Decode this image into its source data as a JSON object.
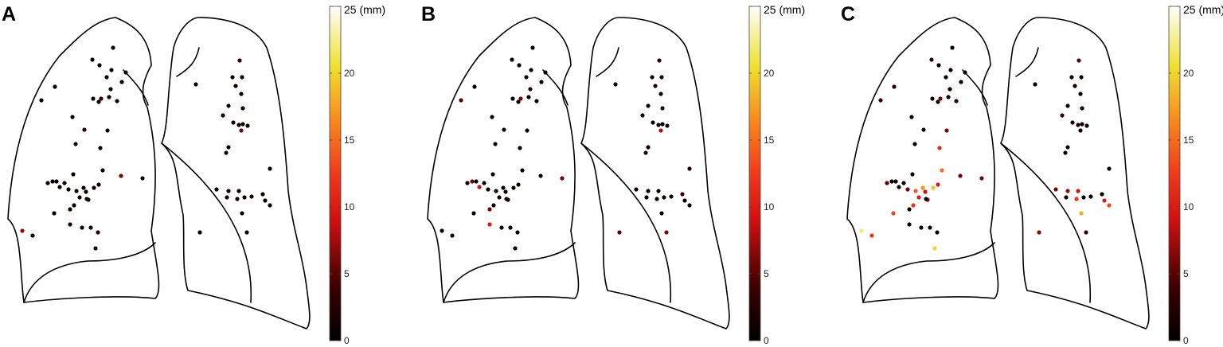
{
  "chart_data": [
    {
      "type": "scatter",
      "panel_label": "A",
      "colorbar": {
        "min": 0,
        "max": 25,
        "ticks": [
          0,
          5,
          10,
          15,
          20,
          25
        ],
        "top_tick_label": "25 (mm)",
        "colormap": "hot"
      },
      "right_lung": [
        {
          "x": 142,
          "y": 60,
          "v": 1
        },
        {
          "x": 116,
          "y": 75,
          "v": 1
        },
        {
          "x": 125,
          "y": 82,
          "v": 1
        },
        {
          "x": 158,
          "y": 91,
          "v": 1
        },
        {
          "x": 140,
          "y": 88,
          "v": 1
        },
        {
          "x": 134,
          "y": 97,
          "v": 1
        },
        {
          "x": 153,
          "y": 103,
          "v": 1
        },
        {
          "x": 139,
          "y": 112,
          "v": 1
        },
        {
          "x": 69,
          "y": 109,
          "v": 1
        },
        {
          "x": 52,
          "y": 126,
          "v": 1
        },
        {
          "x": 117,
          "y": 124,
          "v": 1
        },
        {
          "x": 127,
          "y": 124,
          "v": 4
        },
        {
          "x": 124,
          "y": 128,
          "v": 1
        },
        {
          "x": 137,
          "y": 122,
          "v": 1
        },
        {
          "x": 147,
          "y": 127,
          "v": 1
        },
        {
          "x": 91,
          "y": 147,
          "v": 1
        },
        {
          "x": 106,
          "y": 163,
          "v": 3
        },
        {
          "x": 135,
          "y": 164,
          "v": 1
        },
        {
          "x": 95,
          "y": 181,
          "v": 1
        },
        {
          "x": 126,
          "y": 186,
          "v": 1
        },
        {
          "x": 129,
          "y": 214,
          "v": 1
        },
        {
          "x": 152,
          "y": 221,
          "v": 6
        },
        {
          "x": 179,
          "y": 224,
          "v": 1
        },
        {
          "x": 92,
          "y": 219,
          "v": 1
        },
        {
          "x": 60,
          "y": 230,
          "v": 1
        },
        {
          "x": 66,
          "y": 228,
          "v": 1
        },
        {
          "x": 71,
          "y": 228,
          "v": 1
        },
        {
          "x": 75,
          "y": 235,
          "v": 1
        },
        {
          "x": 81,
          "y": 230,
          "v": 1
        },
        {
          "x": 86,
          "y": 238,
          "v": 1
        },
        {
          "x": 96,
          "y": 240,
          "v": 1
        },
        {
          "x": 105,
          "y": 236,
          "v": 1
        },
        {
          "x": 108,
          "y": 241,
          "v": 1
        },
        {
          "x": 118,
          "y": 236,
          "v": 1
        },
        {
          "x": 124,
          "y": 232,
          "v": 1
        },
        {
          "x": 100,
          "y": 248,
          "v": 1
        },
        {
          "x": 111,
          "y": 251,
          "v": 3
        },
        {
          "x": 109,
          "y": 250,
          "v": 1
        },
        {
          "x": 93,
          "y": 258,
          "v": 1
        },
        {
          "x": 88,
          "y": 263,
          "v": 1
        },
        {
          "x": 68,
          "y": 268,
          "v": 1
        },
        {
          "x": 88,
          "y": 282,
          "v": 1
        },
        {
          "x": 114,
          "y": 286,
          "v": 1
        },
        {
          "x": 123,
          "y": 292,
          "v": 3
        },
        {
          "x": 103,
          "y": 286,
          "v": 1
        },
        {
          "x": 28,
          "y": 290,
          "v": 7
        },
        {
          "x": 41,
          "y": 296,
          "v": 1
        },
        {
          "x": 120,
          "y": 312,
          "v": 1
        }
      ],
      "left_lung": [
        {
          "x": 301,
          "y": 76,
          "v": 4
        },
        {
          "x": 246,
          "y": 106,
          "v": 1
        },
        {
          "x": 292,
          "y": 97,
          "v": 1
        },
        {
          "x": 304,
          "y": 97,
          "v": 1
        },
        {
          "x": 296,
          "y": 108,
          "v": 1
        },
        {
          "x": 303,
          "y": 118,
          "v": 1
        },
        {
          "x": 287,
          "y": 133,
          "v": 1
        },
        {
          "x": 305,
          "y": 136,
          "v": 1
        },
        {
          "x": 280,
          "y": 145,
          "v": 1
        },
        {
          "x": 293,
          "y": 154,
          "v": 1
        },
        {
          "x": 300,
          "y": 157,
          "v": 1
        },
        {
          "x": 305,
          "y": 156,
          "v": 1
        },
        {
          "x": 311,
          "y": 158,
          "v": 1
        },
        {
          "x": 303,
          "y": 164,
          "v": 6
        },
        {
          "x": 287,
          "y": 185,
          "v": 1
        },
        {
          "x": 284,
          "y": 192,
          "v": 1
        },
        {
          "x": 339,
          "y": 212,
          "v": 1
        },
        {
          "x": 272,
          "y": 238,
          "v": 1
        },
        {
          "x": 287,
          "y": 240,
          "v": 1
        },
        {
          "x": 300,
          "y": 240,
          "v": 1
        },
        {
          "x": 285,
          "y": 248,
          "v": 1
        },
        {
          "x": 298,
          "y": 250,
          "v": 1
        },
        {
          "x": 307,
          "y": 248,
          "v": 1
        },
        {
          "x": 316,
          "y": 247,
          "v": 1
        },
        {
          "x": 330,
          "y": 244,
          "v": 1
        },
        {
          "x": 333,
          "y": 252,
          "v": 1
        },
        {
          "x": 339,
          "y": 258,
          "v": 1
        },
        {
          "x": 304,
          "y": 268,
          "v": 1
        },
        {
          "x": 251,
          "y": 292,
          "v": 1
        },
        {
          "x": 310,
          "y": 292,
          "v": 1
        }
      ]
    },
    {
      "type": "scatter",
      "panel_label": "B",
      "colorbar": {
        "min": 0,
        "max": 25,
        "ticks": [
          0,
          5,
          10,
          15,
          20,
          25
        ],
        "top_tick_label": "25 (mm)",
        "colormap": "hot"
      },
      "right_lung": [
        {
          "x": 142,
          "y": 60,
          "v": 1
        },
        {
          "x": 116,
          "y": 75,
          "v": 1
        },
        {
          "x": 125,
          "y": 82,
          "v": 1
        },
        {
          "x": 158,
          "y": 91,
          "v": 1
        },
        {
          "x": 140,
          "y": 88,
          "v": 1
        },
        {
          "x": 134,
          "y": 97,
          "v": 1
        },
        {
          "x": 153,
          "y": 103,
          "v": 1
        },
        {
          "x": 139,
          "y": 112,
          "v": 3
        },
        {
          "x": 69,
          "y": 109,
          "v": 1
        },
        {
          "x": 52,
          "y": 126,
          "v": 5
        },
        {
          "x": 117,
          "y": 124,
          "v": 1
        },
        {
          "x": 127,
          "y": 124,
          "v": 6
        },
        {
          "x": 124,
          "y": 128,
          "v": 1
        },
        {
          "x": 137,
          "y": 122,
          "v": 1
        },
        {
          "x": 147,
          "y": 127,
          "v": 1
        },
        {
          "x": 91,
          "y": 147,
          "v": 1
        },
        {
          "x": 106,
          "y": 163,
          "v": 1
        },
        {
          "x": 135,
          "y": 164,
          "v": 3
        },
        {
          "x": 95,
          "y": 181,
          "v": 1
        },
        {
          "x": 126,
          "y": 186,
          "v": 2
        },
        {
          "x": 129,
          "y": 214,
          "v": 1
        },
        {
          "x": 152,
          "y": 221,
          "v": 1
        },
        {
          "x": 179,
          "y": 224,
          "v": 6
        },
        {
          "x": 92,
          "y": 219,
          "v": 1
        },
        {
          "x": 60,
          "y": 230,
          "v": 1
        },
        {
          "x": 66,
          "y": 228,
          "v": 6
        },
        {
          "x": 71,
          "y": 228,
          "v": 1
        },
        {
          "x": 75,
          "y": 235,
          "v": 9
        },
        {
          "x": 81,
          "y": 230,
          "v": 1
        },
        {
          "x": 86,
          "y": 238,
          "v": 1
        },
        {
          "x": 96,
          "y": 240,
          "v": 1
        },
        {
          "x": 105,
          "y": 236,
          "v": 1
        },
        {
          "x": 108,
          "y": 241,
          "v": 1
        },
        {
          "x": 118,
          "y": 236,
          "v": 1
        },
        {
          "x": 124,
          "y": 232,
          "v": 1
        },
        {
          "x": 100,
          "y": 248,
          "v": 1
        },
        {
          "x": 111,
          "y": 251,
          "v": 1
        },
        {
          "x": 109,
          "y": 250,
          "v": 1
        },
        {
          "x": 93,
          "y": 258,
          "v": 1
        },
        {
          "x": 88,
          "y": 263,
          "v": 6
        },
        {
          "x": 68,
          "y": 268,
          "v": 1
        },
        {
          "x": 88,
          "y": 282,
          "v": 10
        },
        {
          "x": 114,
          "y": 286,
          "v": 1
        },
        {
          "x": 123,
          "y": 292,
          "v": 1
        },
        {
          "x": 103,
          "y": 286,
          "v": 1
        },
        {
          "x": 28,
          "y": 290,
          "v": 1
        },
        {
          "x": 41,
          "y": 296,
          "v": 1
        },
        {
          "x": 120,
          "y": 312,
          "v": 1
        }
      ],
      "left_lung": [
        {
          "x": 301,
          "y": 76,
          "v": 4
        },
        {
          "x": 246,
          "y": 106,
          "v": 1
        },
        {
          "x": 292,
          "y": 97,
          "v": 1
        },
        {
          "x": 304,
          "y": 97,
          "v": 1
        },
        {
          "x": 296,
          "y": 108,
          "v": 1
        },
        {
          "x": 303,
          "y": 118,
          "v": 1
        },
        {
          "x": 287,
          "y": 133,
          "v": 1
        },
        {
          "x": 305,
          "y": 136,
          "v": 1
        },
        {
          "x": 280,
          "y": 145,
          "v": 1
        },
        {
          "x": 293,
          "y": 154,
          "v": 1
        },
        {
          "x": 300,
          "y": 157,
          "v": 1
        },
        {
          "x": 305,
          "y": 156,
          "v": 1
        },
        {
          "x": 311,
          "y": 158,
          "v": 1
        },
        {
          "x": 303,
          "y": 164,
          "v": 8
        },
        {
          "x": 287,
          "y": 185,
          "v": 1
        },
        {
          "x": 284,
          "y": 192,
          "v": 3
        },
        {
          "x": 339,
          "y": 212,
          "v": 3
        },
        {
          "x": 272,
          "y": 238,
          "v": 1
        },
        {
          "x": 287,
          "y": 240,
          "v": 1
        },
        {
          "x": 300,
          "y": 240,
          "v": 1
        },
        {
          "x": 285,
          "y": 248,
          "v": 1
        },
        {
          "x": 298,
          "y": 250,
          "v": 1
        },
        {
          "x": 307,
          "y": 248,
          "v": 1
        },
        {
          "x": 316,
          "y": 247,
          "v": 1
        },
        {
          "x": 330,
          "y": 244,
          "v": 4
        },
        {
          "x": 333,
          "y": 252,
          "v": 1
        },
        {
          "x": 339,
          "y": 258,
          "v": 1
        },
        {
          "x": 304,
          "y": 268,
          "v": 1
        },
        {
          "x": 251,
          "y": 292,
          "v": 5
        },
        {
          "x": 310,
          "y": 292,
          "v": 6
        }
      ]
    },
    {
      "type": "scatter",
      "panel_label": "C",
      "colorbar": {
        "min": 0,
        "max": 25,
        "ticks": [
          0,
          5,
          10,
          15,
          20,
          25
        ],
        "top_tick_label": "25 (mm)",
        "colormap": "hot"
      },
      "right_lung": [
        {
          "x": 142,
          "y": 60,
          "v": 1
        },
        {
          "x": 116,
          "y": 75,
          "v": 4
        },
        {
          "x": 125,
          "y": 82,
          "v": 1
        },
        {
          "x": 158,
          "y": 91,
          "v": 1
        },
        {
          "x": 140,
          "y": 88,
          "v": 1
        },
        {
          "x": 134,
          "y": 97,
          "v": 1
        },
        {
          "x": 153,
          "y": 103,
          "v": 1
        },
        {
          "x": 139,
          "y": 112,
          "v": 1
        },
        {
          "x": 69,
          "y": 109,
          "v": 3
        },
        {
          "x": 52,
          "y": 126,
          "v": 4
        },
        {
          "x": 117,
          "y": 124,
          "v": 1
        },
        {
          "x": 127,
          "y": 124,
          "v": 6
        },
        {
          "x": 124,
          "y": 128,
          "v": 1
        },
        {
          "x": 137,
          "y": 122,
          "v": 1
        },
        {
          "x": 147,
          "y": 127,
          "v": 3
        },
        {
          "x": 91,
          "y": 147,
          "v": 1
        },
        {
          "x": 106,
          "y": 163,
          "v": 1
        },
        {
          "x": 135,
          "y": 164,
          "v": 6
        },
        {
          "x": 95,
          "y": 181,
          "v": 1
        },
        {
          "x": 126,
          "y": 186,
          "v": 11
        },
        {
          "x": 129,
          "y": 214,
          "v": 15
        },
        {
          "x": 152,
          "y": 221,
          "v": 6
        },
        {
          "x": 179,
          "y": 224,
          "v": 6
        },
        {
          "x": 92,
          "y": 219,
          "v": 1
        },
        {
          "x": 60,
          "y": 230,
          "v": 5
        },
        {
          "x": 66,
          "y": 228,
          "v": 1
        },
        {
          "x": 71,
          "y": 228,
          "v": 1
        },
        {
          "x": 75,
          "y": 235,
          "v": 1
        },
        {
          "x": 81,
          "y": 230,
          "v": 1
        },
        {
          "x": 86,
          "y": 238,
          "v": 6
        },
        {
          "x": 96,
          "y": 240,
          "v": 14
        },
        {
          "x": 105,
          "y": 236,
          "v": 17
        },
        {
          "x": 108,
          "y": 241,
          "v": 9
        },
        {
          "x": 118,
          "y": 236,
          "v": 19
        },
        {
          "x": 124,
          "y": 232,
          "v": 10
        },
        {
          "x": 100,
          "y": 248,
          "v": 10
        },
        {
          "x": 111,
          "y": 251,
          "v": 7
        },
        {
          "x": 109,
          "y": 250,
          "v": 1
        },
        {
          "x": 93,
          "y": 258,
          "v": 12
        },
        {
          "x": 88,
          "y": 263,
          "v": 1
        },
        {
          "x": 68,
          "y": 268,
          "v": 13
        },
        {
          "x": 88,
          "y": 282,
          "v": 1
        },
        {
          "x": 114,
          "y": 286,
          "v": 1
        },
        {
          "x": 123,
          "y": 292,
          "v": 1
        },
        {
          "x": 103,
          "y": 286,
          "v": 1
        },
        {
          "x": 28,
          "y": 290,
          "v": 22
        },
        {
          "x": 41,
          "y": 296,
          "v": 12
        },
        {
          "x": 120,
          "y": 312,
          "v": 20
        }
      ],
      "left_lung": [
        {
          "x": 301,
          "y": 76,
          "v": 5
        },
        {
          "x": 246,
          "y": 106,
          "v": 1
        },
        {
          "x": 292,
          "y": 97,
          "v": 1
        },
        {
          "x": 304,
          "y": 97,
          "v": 1
        },
        {
          "x": 296,
          "y": 108,
          "v": 1
        },
        {
          "x": 303,
          "y": 118,
          "v": 1
        },
        {
          "x": 287,
          "y": 133,
          "v": 1
        },
        {
          "x": 305,
          "y": 136,
          "v": 1
        },
        {
          "x": 280,
          "y": 145,
          "v": 4
        },
        {
          "x": 293,
          "y": 154,
          "v": 1
        },
        {
          "x": 300,
          "y": 157,
          "v": 1
        },
        {
          "x": 305,
          "y": 156,
          "v": 1
        },
        {
          "x": 311,
          "y": 158,
          "v": 1
        },
        {
          "x": 303,
          "y": 164,
          "v": 1
        },
        {
          "x": 287,
          "y": 185,
          "v": 1
        },
        {
          "x": 284,
          "y": 192,
          "v": 1
        },
        {
          "x": 339,
          "y": 212,
          "v": 1
        },
        {
          "x": 272,
          "y": 238,
          "v": 6
        },
        {
          "x": 287,
          "y": 240,
          "v": 7
        },
        {
          "x": 300,
          "y": 240,
          "v": 9
        },
        {
          "x": 285,
          "y": 248,
          "v": 1
        },
        {
          "x": 298,
          "y": 250,
          "v": 12
        },
        {
          "x": 307,
          "y": 248,
          "v": 1
        },
        {
          "x": 316,
          "y": 247,
          "v": 1
        },
        {
          "x": 330,
          "y": 244,
          "v": 1
        },
        {
          "x": 333,
          "y": 252,
          "v": 10
        },
        {
          "x": 339,
          "y": 258,
          "v": 13
        },
        {
          "x": 304,
          "y": 268,
          "v": 18
        },
        {
          "x": 251,
          "y": 292,
          "v": 7
        },
        {
          "x": 310,
          "y": 292,
          "v": 4
        }
      ]
    }
  ]
}
